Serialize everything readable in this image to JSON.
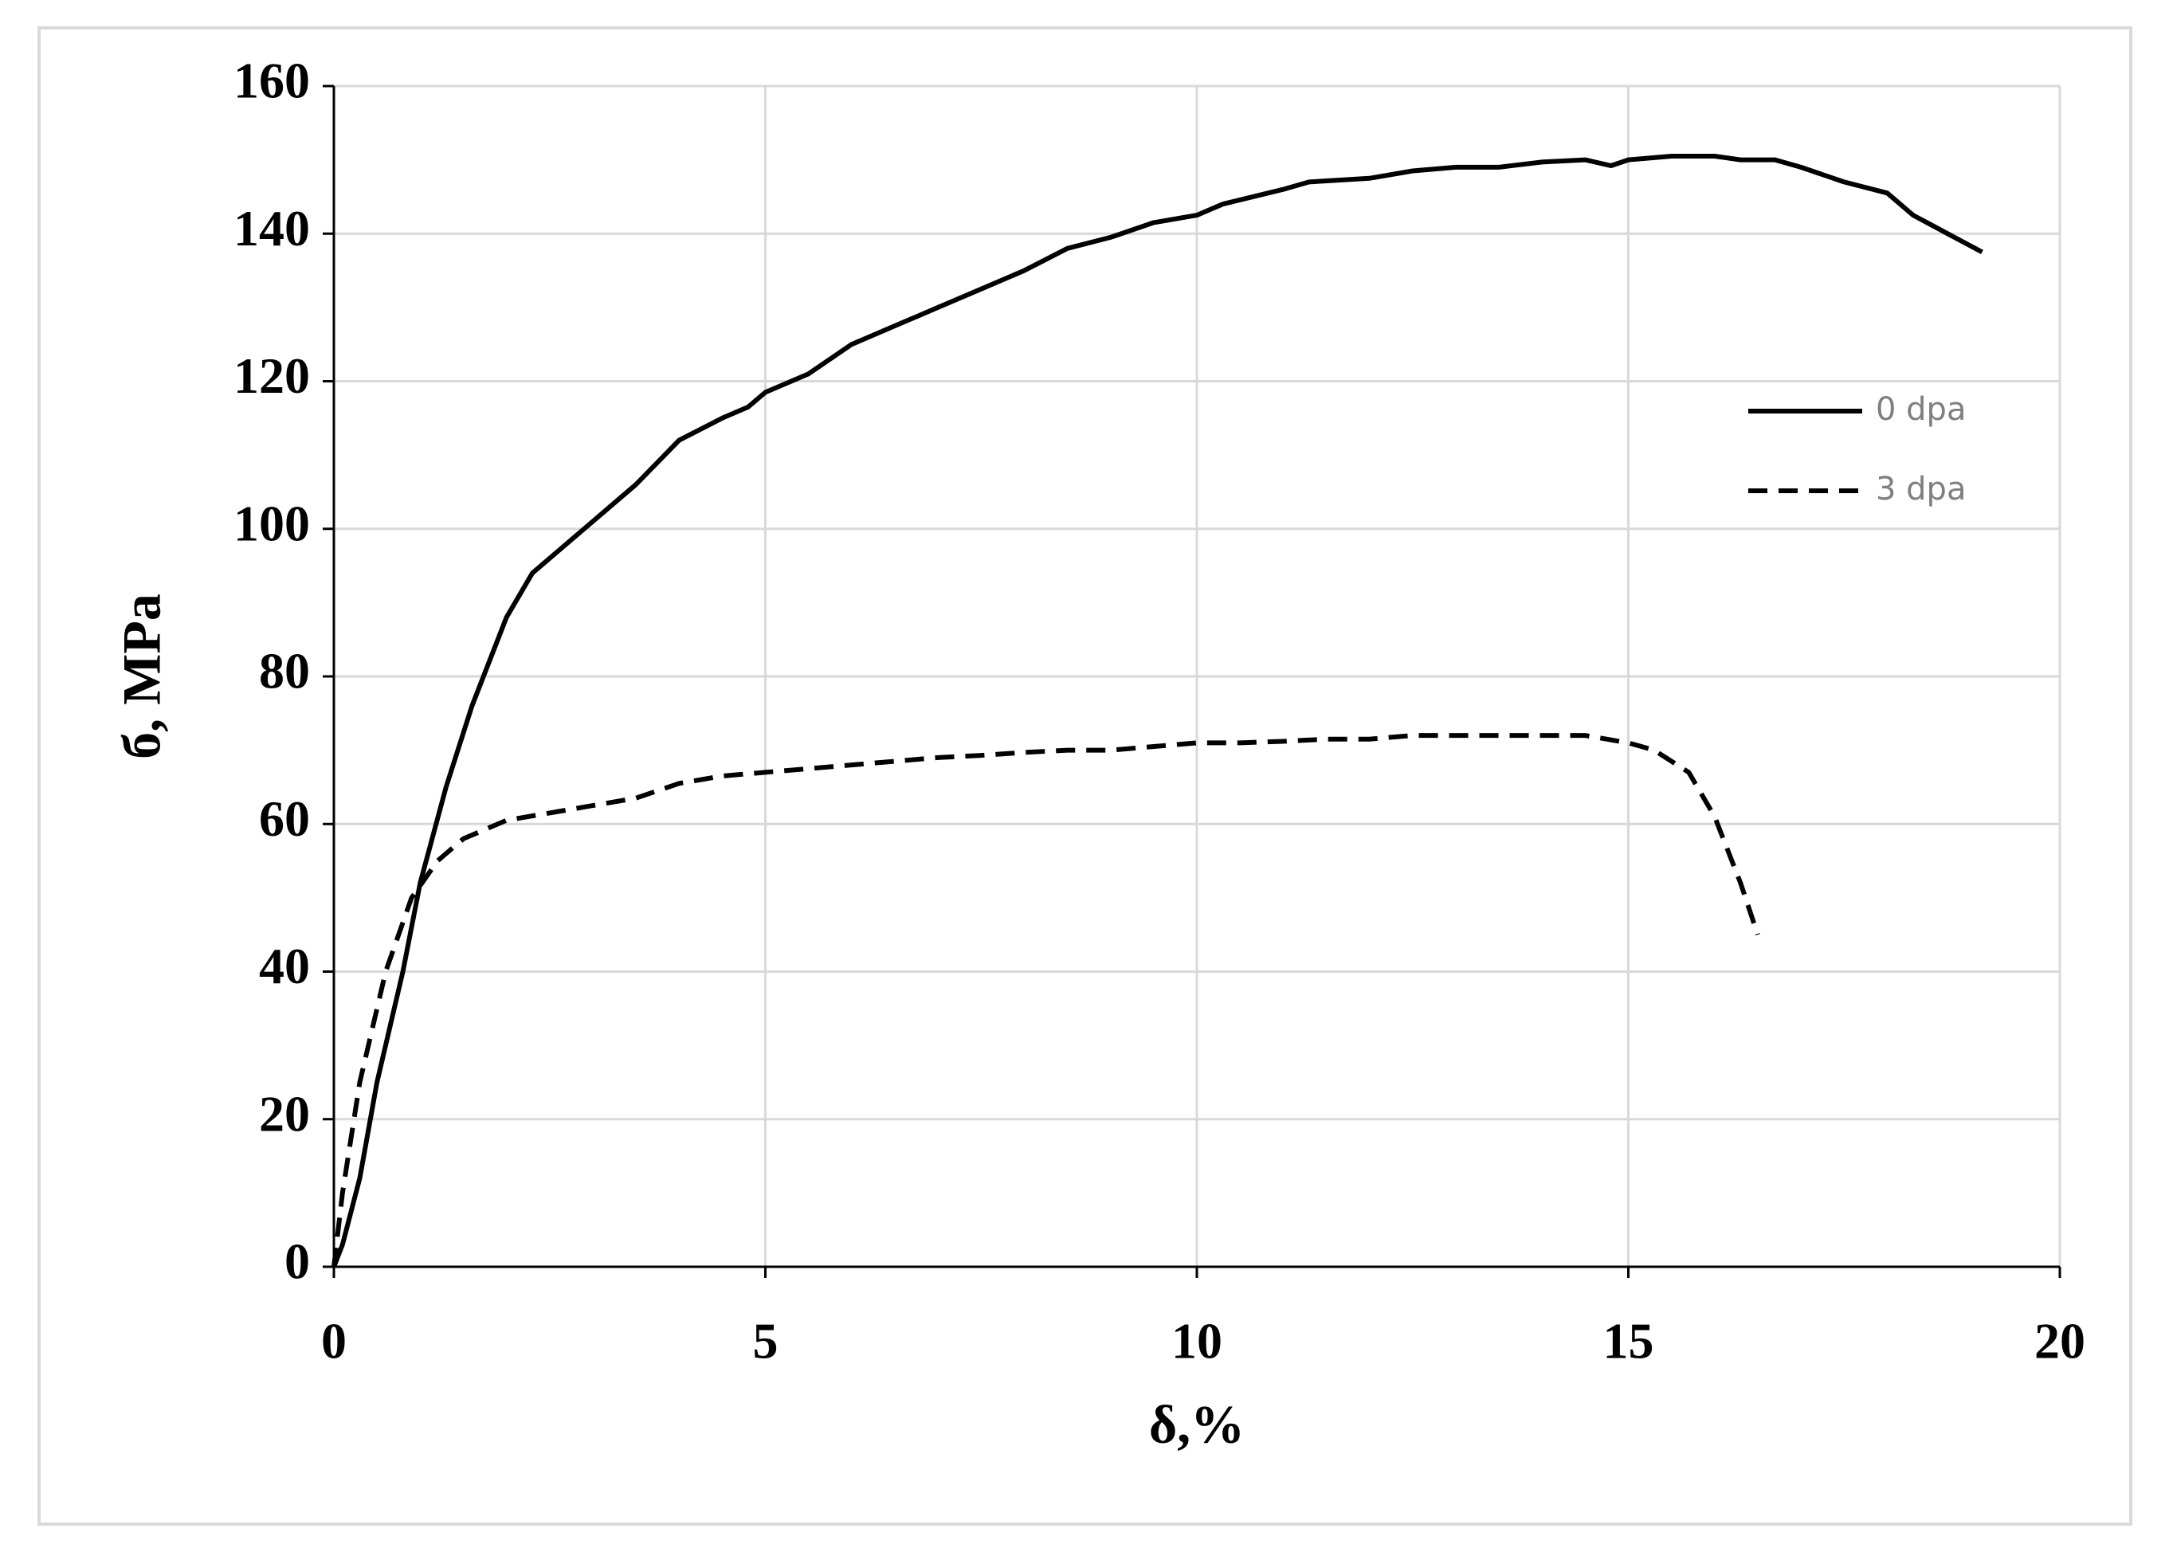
{
  "chart_data": {
    "type": "line",
    "xlabel": "δ,%",
    "ylabel": "б, MPa",
    "xlim": [
      0,
      20
    ],
    "xticks": [
      0,
      5,
      10,
      15,
      20
    ],
    "ylim": [
      0,
      160
    ],
    "yticks": [
      0,
      20,
      40,
      60,
      80,
      100,
      120,
      140,
      160
    ],
    "grid": true,
    "legend": "upper right",
    "series": [
      {
        "name": "0 dpa",
        "color": "#000000",
        "dash": false,
        "x": [
          0,
          0.1,
          0.3,
          0.5,
          0.8,
          1.0,
          1.3,
          1.6,
          2.0,
          2.3,
          2.6,
          3,
          3.5,
          4,
          4.5,
          4.8,
          5,
          5.5,
          6,
          6.5,
          7,
          7.5,
          8,
          8.5,
          9,
          9.5,
          10,
          10.3,
          11,
          11.3,
          12,
          12.5,
          13,
          13.5,
          14,
          14.5,
          14.8,
          15,
          15.5,
          16,
          16.3,
          16.7,
          17,
          17.5,
          18,
          18.3,
          18.7,
          19.1
        ],
        "values": [
          0,
          3,
          12,
          25,
          40,
          52,
          65,
          76,
          88,
          94,
          97,
          101,
          106,
          112,
          115,
          116.5,
          118.5,
          121,
          125,
          127.5,
          130,
          132.5,
          135,
          138,
          139.5,
          141.5,
          142.5,
          144,
          146,
          147,
          147.5,
          148.5,
          149,
          149,
          149.7,
          150,
          149.2,
          150,
          150.5,
          150.5,
          150,
          150,
          149,
          147,
          145.5,
          142.5,
          140,
          137.5
        ]
      },
      {
        "name": "3 dpa",
        "color": "#000000",
        "dash": true,
        "x": [
          0,
          0.1,
          0.3,
          0.6,
          0.9,
          1.2,
          1.5,
          2,
          2.5,
          3,
          3.5,
          4,
          4.5,
          5,
          5.5,
          6,
          6.5,
          7,
          7.5,
          8,
          8.5,
          9,
          9.5,
          10,
          10.5,
          11,
          11.5,
          12,
          12.5,
          13,
          13.5,
          14,
          14.5,
          15,
          15.3,
          15.7,
          16,
          16.3,
          16.5
        ],
        "values": [
          0,
          10,
          25,
          40,
          50,
          55,
          58,
          60.5,
          61.5,
          62.5,
          63.5,
          65.5,
          66.5,
          67,
          67.5,
          68,
          68.5,
          69,
          69.3,
          69.7,
          70,
          70,
          70.5,
          71,
          71,
          71.2,
          71.5,
          71.5,
          72,
          72,
          72,
          72,
          72,
          71,
          70,
          67,
          61,
          52,
          45
        ]
      }
    ]
  }
}
